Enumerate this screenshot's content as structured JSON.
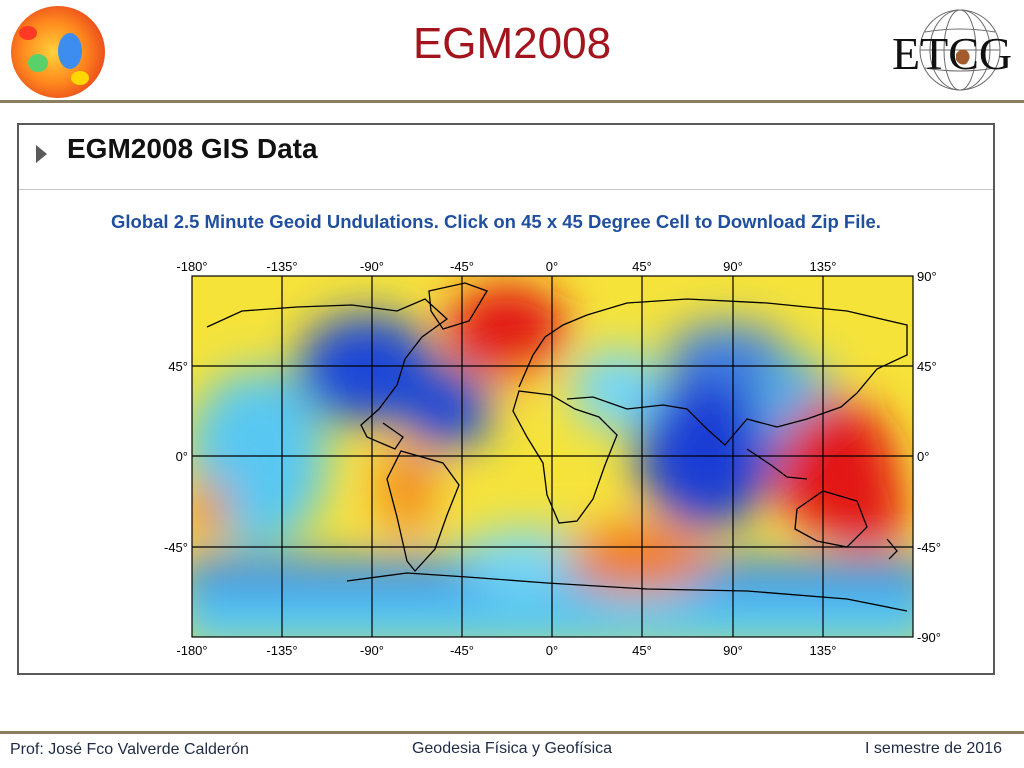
{
  "slide": {
    "title": "EGM2008",
    "logo_text": "ETCG"
  },
  "panel": {
    "heading": "EGM2008 GIS Data",
    "caption": "Global 2.5 Minute Geoid Undulations. Click on 45 x 45 Degree Cell to Download Zip File."
  },
  "map": {
    "lon_labels": [
      "-180°",
      "-135°",
      "-90°",
      "-45°",
      "0°",
      "45°",
      "90°",
      "135°"
    ],
    "lat_labels_left": [
      "45°",
      "0°",
      "-45°"
    ],
    "lat_labels_right": [
      "90°",
      "45°",
      "0°",
      "-45°",
      "-90°"
    ],
    "lon_range": [
      -180,
      180
    ],
    "lat_range": [
      -90,
      90
    ],
    "grid_step_deg": 45,
    "colors": {
      "high": "#e00000",
      "mid": "#ffe600",
      "low": "#1432d2",
      "grid": "#000000"
    }
  },
  "footer": {
    "author": "Prof: José Fco Valverde Calderón",
    "course": "Geodesia Física y Geofísica",
    "term": "I semestre de 2016"
  }
}
